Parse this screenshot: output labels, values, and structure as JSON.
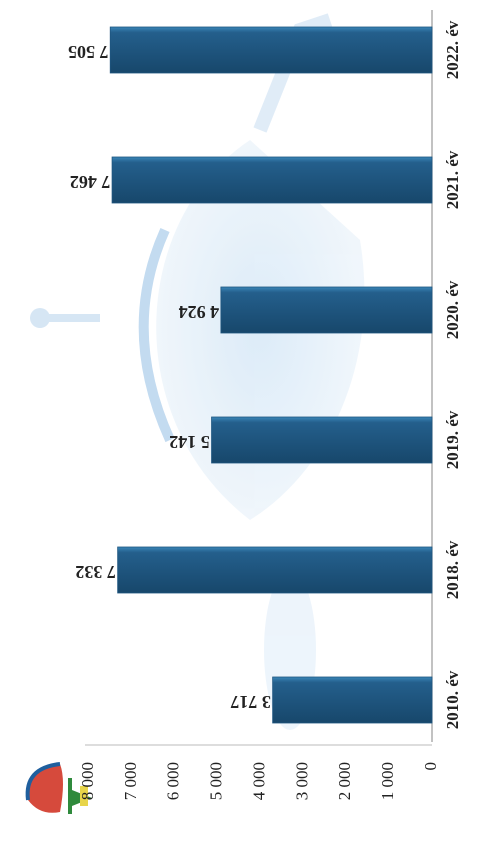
{
  "chart_data": {
    "type": "bar",
    "orientation": "rotated-180",
    "categories": [
      "2010. év",
      "2018. év",
      "2019. év",
      "2020. év",
      "2021. év",
      "2022. év"
    ],
    "values": [
      3717,
      7332,
      5142,
      4924,
      7462,
      7505
    ],
    "value_labels": [
      "3 717",
      "7 332",
      "5 142",
      "4 924",
      "7 462",
      "7 505"
    ],
    "ylim": [
      0,
      8000
    ],
    "y_ticks": [
      0,
      1000,
      2000,
      3000,
      4000,
      5000,
      6000,
      7000,
      8000
    ],
    "y_tick_labels": [
      "0",
      "1 000",
      "2 000",
      "3 000",
      "4 000",
      "5 000",
      "6 000",
      "7 000",
      "8 000"
    ],
    "bar_color": "#1f5680",
    "grid": false,
    "legend": "none"
  }
}
